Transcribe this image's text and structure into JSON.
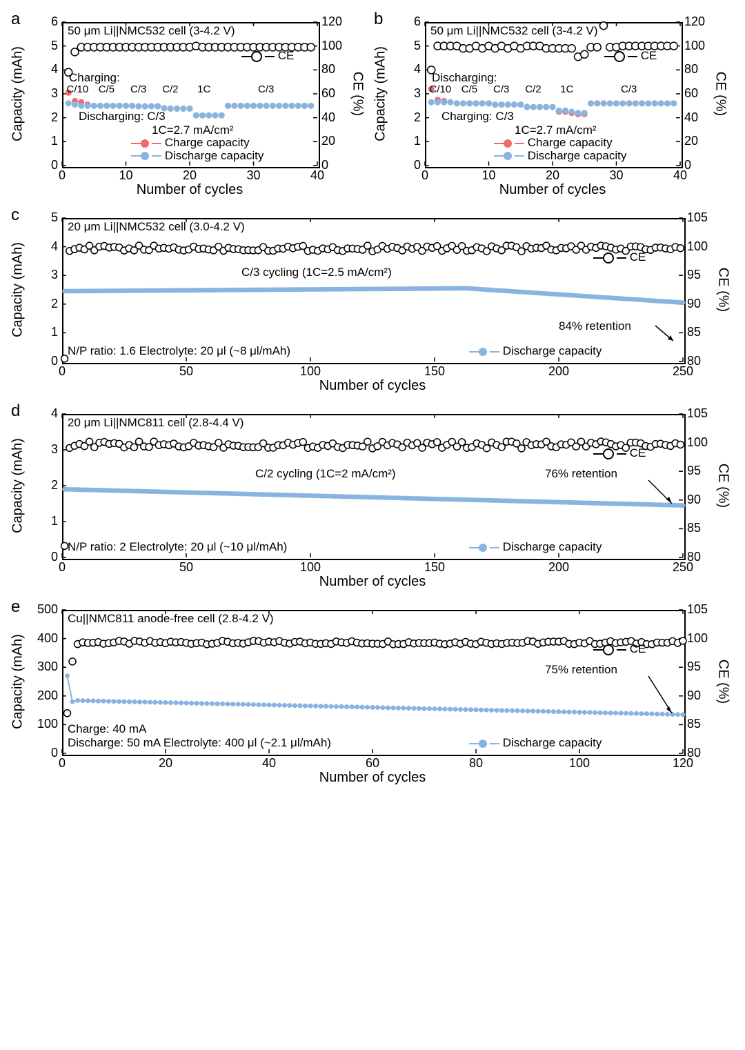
{
  "figure": {
    "background": "#ffffff",
    "colors": {
      "axis": "#000000",
      "text": "#000000",
      "ce_marker_stroke": "#000000",
      "ce_marker_fill": "#ffffff",
      "charge_marker": "#ef6a6c",
      "discharge_marker": "#88b4e0",
      "discharge_line": "#88b4e0"
    },
    "font": {
      "family": "Arial",
      "label_pt": 20,
      "tick_pt": 18,
      "ann_pt": 17,
      "letter_pt": 24
    }
  },
  "panels": {
    "a": {
      "letter": "a",
      "type": "scatter-dual-y",
      "title": "50 μm Li||NMC532 cell (3-4.2 V)",
      "x": {
        "label": "Number of cycles",
        "lim": [
          0,
          40
        ],
        "ticks": [
          0,
          10,
          20,
          30,
          40
        ]
      },
      "y_left": {
        "label": "Capacity (mAh)",
        "lim": [
          0,
          6
        ],
        "ticks": [
          0,
          1,
          2,
          3,
          4,
          5,
          6
        ]
      },
      "y_right": {
        "label": "CE (%)",
        "lim": [
          0,
          120
        ],
        "ticks": [
          0,
          20,
          40,
          60,
          80,
          100,
          120
        ]
      },
      "legend": [
        {
          "style": "open-circle",
          "color": "#000000",
          "label": "CE"
        },
        {
          "style": "filled-circle",
          "color": "#ef6a6c",
          "label": "Charge capacity"
        },
        {
          "style": "filled-circle",
          "color": "#88b4e0",
          "label": "Discharge capacity"
        }
      ],
      "annotations": {
        "charging": "Charging:",
        "rates": [
          "C/10",
          "C/5",
          "C/3",
          "C/2",
          "1C",
          "C/3"
        ],
        "discharging": "Discharging: C/3",
        "note": "1C=2.7 mA/cm²"
      },
      "series": {
        "charge": {
          "cycles": [
            1,
            2,
            3,
            4,
            5,
            6,
            7,
            8,
            9,
            10,
            11,
            12,
            13,
            14,
            15,
            16,
            17,
            18,
            19,
            20,
            21,
            22,
            23,
            24,
            25,
            26,
            27,
            28,
            29,
            30,
            31,
            32,
            33,
            34,
            35,
            36,
            37,
            38,
            39
          ],
          "values": [
            3.05,
            2.7,
            2.65,
            2.55,
            2.5,
            2.5,
            2.5,
            2.5,
            2.5,
            2.5,
            2.5,
            2.48,
            2.48,
            2.48,
            2.48,
            2.4,
            2.38,
            2.38,
            2.38,
            2.38,
            2.1,
            2.1,
            2.1,
            2.1,
            2.1,
            2.5,
            2.5,
            2.5,
            2.5,
            2.5,
            2.5,
            2.5,
            2.5,
            2.5,
            2.5,
            2.5,
            2.5,
            2.5,
            2.5
          ]
        },
        "discharge": {
          "cycles": [
            1,
            2,
            3,
            4,
            5,
            6,
            7,
            8,
            9,
            10,
            11,
            12,
            13,
            14,
            15,
            16,
            17,
            18,
            19,
            20,
            21,
            22,
            23,
            24,
            25,
            26,
            27,
            28,
            29,
            30,
            31,
            32,
            33,
            34,
            35,
            36,
            37,
            38,
            39
          ],
          "values": [
            2.6,
            2.55,
            2.5,
            2.5,
            2.5,
            2.5,
            2.5,
            2.5,
            2.5,
            2.5,
            2.5,
            2.48,
            2.48,
            2.48,
            2.48,
            2.4,
            2.38,
            2.38,
            2.38,
            2.38,
            2.1,
            2.1,
            2.1,
            2.1,
            2.1,
            2.5,
            2.5,
            2.5,
            2.5,
            2.5,
            2.5,
            2.5,
            2.5,
            2.5,
            2.5,
            2.5,
            2.5,
            2.5,
            2.5
          ]
        },
        "ce": {
          "cycles": [
            1,
            2,
            3,
            4,
            5,
            6,
            7,
            8,
            9,
            10,
            11,
            12,
            13,
            14,
            15,
            16,
            17,
            18,
            19,
            20,
            21,
            22,
            23,
            24,
            25,
            26,
            27,
            28,
            29,
            30,
            31,
            32,
            33,
            34,
            35,
            36,
            37,
            38,
            39
          ],
          "values": [
            78,
            95,
            99,
            99,
            99,
            99,
            99,
            99,
            99,
            99,
            99,
            99,
            99,
            99,
            99,
            99,
            99,
            99,
            99,
            99,
            100,
            99,
            99,
            99,
            99,
            99,
            99,
            99,
            99,
            99,
            99,
            99,
            99,
            99,
            99,
            99,
            99,
            99,
            99
          ]
        }
      }
    },
    "b": {
      "letter": "b",
      "type": "scatter-dual-y",
      "title": "50 μm Li||NMC532 cell (3-4.2 V)",
      "x": {
        "label": "Number of cycles",
        "lim": [
          0,
          40
        ],
        "ticks": [
          0,
          10,
          20,
          30,
          40
        ]
      },
      "y_left": {
        "label": "Capacity (mAh)",
        "lim": [
          0,
          6
        ],
        "ticks": [
          0,
          1,
          2,
          3,
          4,
          5,
          6
        ]
      },
      "y_right": {
        "label": "CE (%)",
        "lim": [
          0,
          120
        ],
        "ticks": [
          0,
          20,
          40,
          60,
          80,
          100,
          120
        ]
      },
      "legend": [
        {
          "style": "open-circle",
          "color": "#000000",
          "label": "CE"
        },
        {
          "style": "filled-circle",
          "color": "#ef6a6c",
          "label": "Charge capacity"
        },
        {
          "style": "filled-circle",
          "color": "#88b4e0",
          "label": "Discharge capacity"
        }
      ],
      "annotations": {
        "charging": "Discharging:",
        "rates": [
          "C/10",
          "C/5",
          "C/3",
          "C/2",
          "1C",
          "C/3"
        ],
        "discharging": "Charging: C/3",
        "note": "1C=2.7 mA/cm²"
      },
      "series": {
        "charge": {
          "cycles": [
            1,
            2,
            3,
            4,
            5,
            6,
            7,
            8,
            9,
            10,
            11,
            12,
            13,
            14,
            15,
            16,
            17,
            18,
            19,
            20,
            21,
            22,
            23,
            24,
            25,
            26,
            27,
            28,
            29,
            30,
            31,
            32,
            33,
            34,
            35,
            36,
            37,
            38,
            39
          ],
          "values": [
            3.2,
            2.75,
            2.7,
            2.65,
            2.6,
            2.6,
            2.6,
            2.6,
            2.6,
            2.6,
            2.55,
            2.55,
            2.55,
            2.55,
            2.55,
            2.45,
            2.45,
            2.45,
            2.45,
            2.45,
            2.25,
            2.25,
            2.2,
            2.15,
            2.15,
            2.6,
            2.6,
            2.6,
            2.6,
            2.6,
            2.6,
            2.6,
            2.6,
            2.6,
            2.6,
            2.6,
            2.6,
            2.6,
            2.6
          ]
        },
        "discharge": {
          "cycles": [
            1,
            2,
            3,
            4,
            5,
            6,
            7,
            8,
            9,
            10,
            11,
            12,
            13,
            14,
            15,
            16,
            17,
            18,
            19,
            20,
            21,
            22,
            23,
            24,
            25,
            26,
            27,
            28,
            29,
            30,
            31,
            32,
            33,
            34,
            35,
            36,
            37,
            38,
            39
          ],
          "values": [
            2.65,
            2.65,
            2.65,
            2.65,
            2.6,
            2.6,
            2.6,
            2.6,
            2.6,
            2.6,
            2.55,
            2.55,
            2.55,
            2.55,
            2.55,
            2.45,
            2.45,
            2.45,
            2.45,
            2.45,
            2.3,
            2.3,
            2.25,
            2.2,
            2.2,
            2.6,
            2.6,
            2.6,
            2.6,
            2.6,
            2.6,
            2.6,
            2.6,
            2.6,
            2.6,
            2.6,
            2.6,
            2.6,
            2.6
          ]
        },
        "ce": {
          "cycles": [
            1,
            2,
            3,
            4,
            5,
            6,
            7,
            8,
            9,
            10,
            11,
            12,
            13,
            14,
            15,
            16,
            17,
            18,
            19,
            20,
            21,
            22,
            23,
            24,
            25,
            26,
            27,
            28,
            29,
            30,
            31,
            32,
            33,
            34,
            35,
            36,
            37,
            38,
            39
          ],
          "values": [
            80,
            100,
            100,
            100,
            100,
            98,
            98,
            100,
            98,
            100,
            98,
            100,
            98,
            100,
            98,
            100,
            100,
            100,
            98,
            98,
            98,
            98,
            98,
            91,
            93,
            99,
            99,
            117,
            99,
            99,
            100,
            100,
            100,
            100,
            100,
            100,
            100,
            100,
            100
          ]
        }
      }
    },
    "c": {
      "letter": "c",
      "type": "scatter-dual-y",
      "title": "20 μm Li||NMC532 cell (3.0-4.2 V)",
      "x": {
        "label": "Number of cycles",
        "lim": [
          0,
          250
        ],
        "ticks": [
          0,
          50,
          100,
          150,
          200,
          250
        ]
      },
      "y_left": {
        "label": "Capacity (mAh)",
        "lim": [
          0,
          5
        ],
        "ticks": [
          0,
          1,
          2,
          3,
          4,
          5
        ]
      },
      "y_right": {
        "label": "CE (%)",
        "lim": [
          80,
          105
        ],
        "ticks": [
          80,
          85,
          90,
          95,
          100,
          105
        ]
      },
      "legend": [
        {
          "style": "open-circle",
          "color": "#000000",
          "label": "CE"
        },
        {
          "style": "filled-circle",
          "color": "#88b4e0",
          "label": "Discharge capacity"
        }
      ],
      "annotations": {
        "cycling": "C/3 cycling (1C=2.5 mA/cm²)",
        "retention": "84% retention",
        "np": "N/P ratio: 1.6   Electrolyte: 20 μl (~8 μl/mAh)"
      },
      "series": {
        "discharge": {
          "start": 1,
          "end": 250,
          "start_val": 2.45,
          "end_val": 2.05,
          "mid_val": 2.55
        },
        "ce": {
          "start": 1,
          "end": 250,
          "first_vals": [
            80.5,
            93
          ],
          "plateau": 99.7,
          "scatter": 0.5
        }
      }
    },
    "d": {
      "letter": "d",
      "type": "scatter-dual-y",
      "title": "20 μm Li||NMC811 cell (2.8-4.4 V)",
      "x": {
        "label": "Number of cycles",
        "lim": [
          0,
          250
        ],
        "ticks": [
          0,
          50,
          100,
          150,
          200,
          250
        ]
      },
      "y_left": {
        "label": "Capacity (mAh)",
        "lim": [
          0,
          4
        ],
        "ticks": [
          0,
          1,
          2,
          3,
          4
        ]
      },
      "y_right": {
        "label": "CE (%)",
        "lim": [
          80,
          105
        ],
        "ticks": [
          80,
          85,
          90,
          95,
          100,
          105
        ]
      },
      "legend": [
        {
          "style": "open-circle",
          "color": "#000000",
          "label": "CE"
        },
        {
          "style": "filled-circle",
          "color": "#88b4e0",
          "label": "Discharge capacity"
        }
      ],
      "annotations": {
        "cycling": "C/2 cycling (1C=2 mA/cm²)",
        "retention": "76% retention",
        "np": "N/P ratio: 2   Electrolyte: 20 μl (~10 μl/mAh)"
      },
      "series": {
        "discharge": {
          "start": 1,
          "end": 250,
          "start_val": 1.9,
          "end_val": 1.45
        },
        "ce": {
          "start": 1,
          "end": 250,
          "first_vals": [
            82,
            94
          ],
          "plateau": 99.6,
          "scatter": 0.6
        }
      }
    },
    "e": {
      "letter": "e",
      "type": "scatter-dual-y",
      "title": "Cu||NMC811 anode-free cell (2.8-4.2 V)",
      "x": {
        "label": "Number of cycles",
        "lim": [
          0,
          120
        ],
        "ticks": [
          0,
          20,
          40,
          60,
          80,
          100,
          120
        ]
      },
      "y_left": {
        "label": "Capacity (mAh)",
        "lim": [
          0,
          500
        ],
        "ticks": [
          0,
          100,
          200,
          300,
          400,
          500
        ]
      },
      "y_right": {
        "label": "CE (%)",
        "lim": [
          80,
          105
        ],
        "ticks": [
          80,
          85,
          90,
          95,
          100,
          105
        ]
      },
      "legend": [
        {
          "style": "open-circle",
          "color": "#000000",
          "label": "CE"
        },
        {
          "style": "filled-circle",
          "color": "#88b4e0",
          "label": "Discharge capacity"
        }
      ],
      "annotations": {
        "retention": "75% retention",
        "charge": "Charge: 40 mA",
        "discharge": "Discharge: 50 mA    Electrolyte: 400 μl (~2.1 μl/mAh)"
      },
      "series": {
        "discharge": {
          "start": 1,
          "end": 120,
          "first_vals": [
            270,
            180
          ],
          "start_val": 185,
          "end_val": 135
        },
        "ce": {
          "start": 1,
          "end": 120,
          "first_vals": [
            87,
            96
          ],
          "plateau": 99.3,
          "scatter": 0.3
        }
      }
    }
  }
}
